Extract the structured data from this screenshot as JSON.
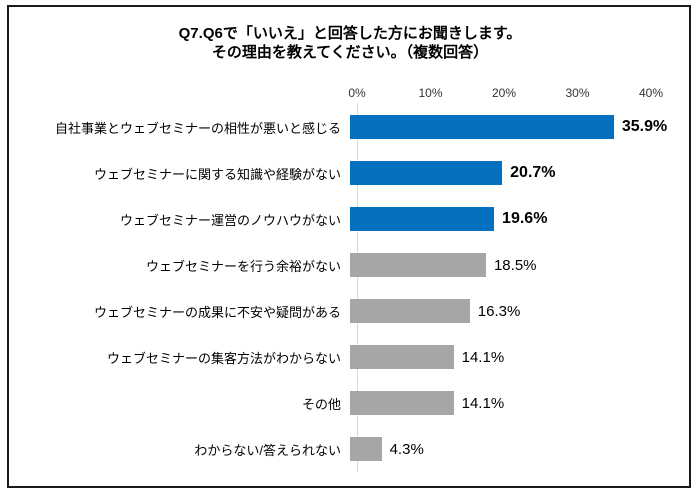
{
  "frame": {
    "border_color": "#1a1a1a",
    "background": "#ffffff"
  },
  "chart_data": {
    "type": "bar",
    "orientation": "horizontal",
    "title_lines": [
      "Q7.Q6で「いいえ」と回答した方にお聞きします。",
      "その理由を教えてください。（複数回答）"
    ],
    "categories": [
      "自社事業とウェブセミナーの相性が悪いと感じる",
      "ウェブセミナーに関する知識や経験がない",
      "ウェブセミナー運営のノウハウがない",
      "ウェブセミナーを行う余裕がない",
      "ウェブセミナーの成果に不安や疑問がある",
      "ウェブセミナーの集客方法がわからない",
      "その他",
      "わからない/答えられない"
    ],
    "values": [
      35.9,
      20.7,
      19.6,
      18.5,
      16.3,
      14.1,
      14.1,
      4.3
    ],
    "value_labels": [
      "35.9%",
      "20.7%",
      "19.6%",
      "18.5%",
      "16.3%",
      "14.1%",
      "14.1%",
      "4.3%"
    ],
    "bar_colors": [
      "#0670c0",
      "#0670c0",
      "#0670c0",
      "#a6a6a6",
      "#a6a6a6",
      "#a6a6a6",
      "#a6a6a6",
      "#a6a6a6"
    ],
    "bold_flags": [
      true,
      true,
      true,
      false,
      false,
      false,
      false,
      false
    ],
    "xlabel": "",
    "ylabel": "",
    "xlim": [
      0,
      40
    ],
    "x_ticks": [
      "0%",
      "10%",
      "20%",
      "30%",
      "40%"
    ],
    "x_tick_values": [
      0,
      10,
      20,
      30,
      40
    ],
    "grid": false,
    "legend": "none",
    "axis_line_color": "#d9d9d9",
    "colors": {
      "highlight": "#0670c0",
      "default": "#a6a6a6"
    }
  }
}
